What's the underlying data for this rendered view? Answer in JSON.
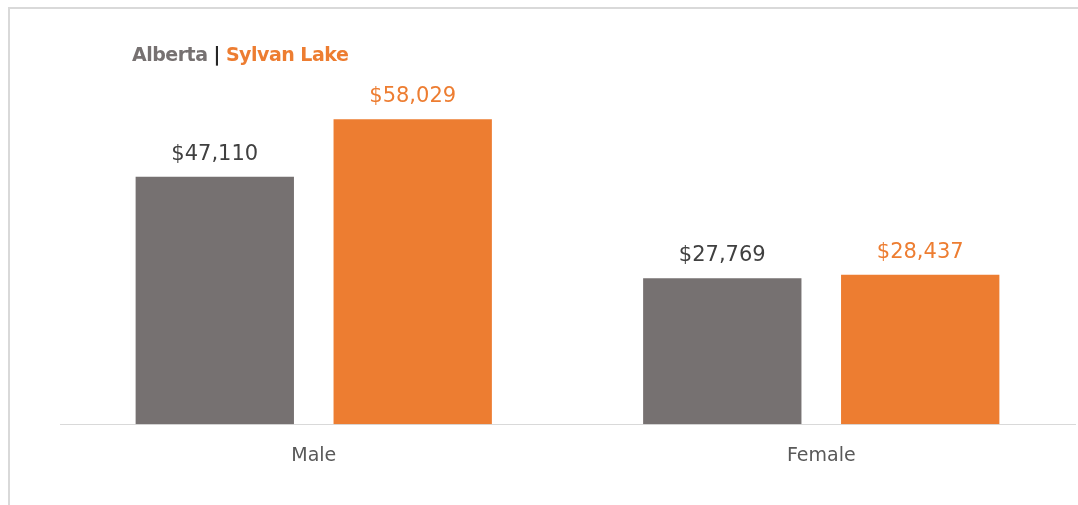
{
  "chart_data": {
    "type": "bar",
    "categories": [
      "Male",
      "Female"
    ],
    "series": [
      {
        "name": "Alberta",
        "color": "#767171",
        "values": [
          47110,
          27769
        ],
        "value_labels": [
          "$47,110",
          "$27,769"
        ]
      },
      {
        "name": "Sylvan Lake",
        "color": "#ed7d31",
        "values": [
          58029,
          28437
        ],
        "value_labels": [
          "$58,029",
          "$28,437"
        ]
      }
    ],
    "annotations": [
      "|"
    ],
    "legend": "top left",
    "grid": false
  }
}
